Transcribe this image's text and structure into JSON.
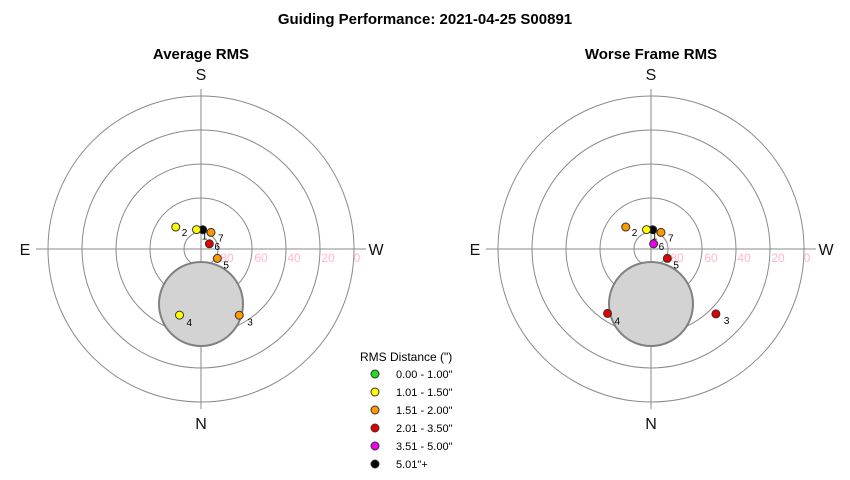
{
  "title": "Guiding Performance: 2021-04-25 S00891",
  "compass": {
    "top": "S",
    "bottom": "N",
    "left": "E",
    "right": "W"
  },
  "ring_labels": [
    "80",
    "60",
    "40",
    "20",
    "0"
  ],
  "legend": {
    "title": "RMS Distance (\")",
    "entries": [
      {
        "label": "0.00 - 1.00\"",
        "color": "#22dd22"
      },
      {
        "label": "1.01 - 1.50\"",
        "color": "#ffff00"
      },
      {
        "label": "1.51 - 2.00\"",
        "color": "#ff9900"
      },
      {
        "label": "2.01 - 3.50\"",
        "color": "#e00000"
      },
      {
        "label": "3.51 - 5.00\"",
        "color": "#ee00ee"
      },
      {
        "label": "5.01\"+",
        "color": "#000000"
      }
    ]
  },
  "chart_data": [
    {
      "type": "scatter",
      "projection": "polar",
      "title": "Average RMS",
      "radial_axis": "altitude_deg",
      "radial_ticks": [
        80,
        60,
        40,
        20,
        0
      ],
      "angular_axis": "azimuth_deg",
      "azimuth_orientation": {
        "N": 180,
        "E": 90,
        "S": 0,
        "W": 270
      },
      "points": [
        {
          "label": "1",
          "altitude": 78.6,
          "azimuth": 355,
          "color": "#000000"
        },
        {
          "label": "2",
          "altitude": 70.3,
          "azimuth": 49,
          "color": "#ffff00"
        },
        {
          "label": "3",
          "altitude": 45.0,
          "azimuth": 210,
          "color": "#ff9900"
        },
        {
          "label": "4",
          "altitude": 49.1,
          "azimuth": 162,
          "color": "#ffff00"
        },
        {
          "label": "5",
          "altitude": 78.9,
          "azimuth": 240,
          "color": "#ff9900"
        },
        {
          "label": "6",
          "altitude": 84.2,
          "azimuth": 302,
          "color": "#e00000"
        },
        {
          "label": "7",
          "altitude": 78.6,
          "azimuth": 329,
          "color": "#ff9900"
        },
        {
          "label": "",
          "altitude": 78.3,
          "azimuth": 13,
          "color": "#ffff00"
        }
      ]
    },
    {
      "type": "scatter",
      "projection": "polar",
      "title": "Worse Frame RMS",
      "radial_axis": "altitude_deg",
      "radial_ticks": [
        80,
        60,
        40,
        20,
        0
      ],
      "angular_axis": "azimuth_deg",
      "azimuth_orientation": {
        "N": 180,
        "E": 90,
        "S": 0,
        "W": 270
      },
      "points": [
        {
          "label": "1",
          "altitude": 78.6,
          "azimuth": 355,
          "color": "#000000"
        },
        {
          "label": "2",
          "altitude": 70.3,
          "azimuth": 49,
          "color": "#ff9900"
        },
        {
          "label": "3",
          "altitude": 36.0,
          "azimuth": 225,
          "color": "#e00000"
        },
        {
          "label": "4",
          "altitude": 44.3,
          "azimuth": 146,
          "color": "#e00000"
        },
        {
          "label": "5",
          "altitude": 78.9,
          "azimuth": 240,
          "color": "#e00000"
        },
        {
          "label": "6",
          "altitude": 86.6,
          "azimuth": 333,
          "color": "#ee00ee"
        },
        {
          "label": "7",
          "altitude": 78.6,
          "azimuth": 329,
          "color": "#ff9900"
        },
        {
          "label": "",
          "altitude": 78.3,
          "azimuth": 13,
          "color": "#ffff00"
        }
      ]
    }
  ]
}
